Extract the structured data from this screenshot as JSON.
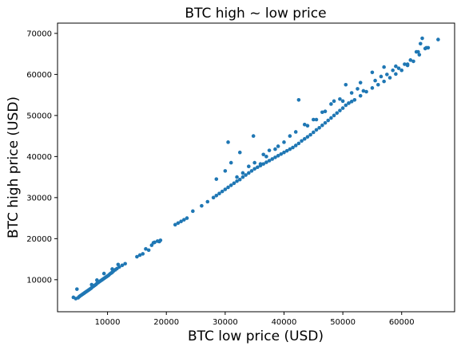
{
  "chart_data": {
    "type": "scatter",
    "title": "BTC high ~ low price",
    "xlabel": "BTC low price (USD)",
    "ylabel": "BTC high price (USD)",
    "xlim": [
      1500,
      69000
    ],
    "ylim": [
      2200,
      72500
    ],
    "xticks": [
      10000,
      20000,
      30000,
      40000,
      50000,
      60000
    ],
    "xtick_labels": [
      "10000",
      "20000",
      "30000",
      "40000",
      "50000",
      "60000"
    ],
    "yticks": [
      10000,
      20000,
      30000,
      40000,
      50000,
      60000,
      70000
    ],
    "ytick_labels": [
      "10000",
      "20000",
      "30000",
      "40000",
      "50000",
      "60000",
      "70000"
    ],
    "grid": false,
    "marker_color": "#1f77b4",
    "series": [
      {
        "x": [
          4200,
          4600,
          4800,
          5000,
          5200,
          5400,
          5600,
          5800,
          6000,
          6200,
          6400,
          6600,
          6800,
          7000,
          7200,
          7400,
          7600,
          7800,
          8000,
          8200,
          8400,
          8600,
          8800,
          9000,
          9200,
          9400,
          9600,
          9800,
          10000,
          10200,
          10400,
          10600,
          10800,
          11000,
          11300,
          11600,
          12000,
          12500,
          13000,
          7300,
          8200,
          9400,
          10800,
          11800,
          15000,
          16000,
          17000,
          17500,
          18000,
          18500,
          19000,
          15500,
          16500,
          17800,
          18800,
          21500,
          22000,
          22500,
          23000,
          23500,
          24500,
          26000,
          27000,
          28000,
          28500,
          29000,
          29500,
          30000,
          30500,
          31000,
          31500,
          32000,
          32500,
          33000,
          33500,
          34000,
          34500,
          35000,
          35500,
          36000,
          36500,
          37000,
          37500,
          38000,
          38500,
          39000,
          39500,
          40000,
          40500,
          41000,
          41500,
          42000,
          42500,
          43000,
          43500,
          44000,
          44500,
          45000,
          45500,
          46000,
          46500,
          47000,
          47500,
          48000,
          48500,
          49000,
          49500,
          50000,
          50500,
          51000,
          51500,
          52000,
          53000,
          54000,
          55000,
          56000,
          57000,
          58000,
          59000,
          60000,
          61000,
          62000,
          63000,
          64000,
          30500,
          31000,
          32500,
          34800,
          37000,
          36000,
          38500,
          40000,
          42000,
          43500,
          45000,
          46500,
          48000,
          49500,
          51000,
          52500,
          47000,
          44000,
          41000,
          39000,
          36500,
          34000,
          32000,
          28500,
          30000,
          33000,
          35000,
          37500,
          42500,
          45500,
          48500,
          50500,
          53500,
          55500,
          56500,
          57500,
          58500,
          59500,
          60500,
          61500,
          62500,
          63500,
          64500,
          66200,
          62800,
          63200,
          64200,
          61000,
          59000,
          57000,
          55000,
          53000,
          51500,
          50000
        ],
        "y": [
          5700,
          5400,
          7700,
          5600,
          5900,
          6100,
          6300,
          6500,
          6700,
          6900,
          7100,
          7300,
          7500,
          7700,
          7900,
          8200,
          8400,
          8600,
          8800,
          9100,
          9300,
          9500,
          9700,
          9900,
          10100,
          10300,
          10500,
          10700,
          10900,
          11100,
          11400,
          11600,
          11800,
          12100,
          12400,
          12700,
          13100,
          13500,
          13900,
          8800,
          9900,
          11500,
          12600,
          13700,
          15600,
          16300,
          17200,
          18400,
          19100,
          19400,
          19600,
          16000,
          17500,
          19000,
          19300,
          23400,
          23800,
          24200,
          24600,
          25000,
          26700,
          28000,
          29000,
          30000,
          30500,
          31000,
          31500,
          32000,
          32500,
          33000,
          33500,
          34000,
          34400,
          35000,
          35500,
          36000,
          36500,
          37000,
          37400,
          37800,
          38200,
          38600,
          39000,
          39400,
          39800,
          40200,
          40600,
          41000,
          41400,
          41800,
          42200,
          42700,
          43200,
          43800,
          44300,
          44800,
          45300,
          45900,
          46500,
          47000,
          47600,
          48200,
          48800,
          49400,
          50000,
          50600,
          51200,
          51800,
          52500,
          53000,
          53400,
          53800,
          54800,
          55800,
          56700,
          57500,
          58300,
          59200,
          60100,
          61000,
          62200,
          63200,
          64800,
          66300,
          43500,
          38500,
          41000,
          45000,
          40000,
          38200,
          41800,
          43500,
          46000,
          47800,
          49000,
          50800,
          52800,
          54000,
          53000,
          56500,
          51000,
          47500,
          45000,
          42500,
          40500,
          37600,
          35000,
          34500,
          36500,
          36000,
          38500,
          41500,
          53800,
          49000,
          53500,
          57500,
          56000,
          58500,
          59500,
          60000,
          61000,
          61500,
          62500,
          63500,
          65500,
          68800,
          66500,
          68500,
          65500,
          67500,
          66500,
          62500,
          62000,
          61800,
          60500,
          58000,
          55500,
          53500
        ]
      }
    ]
  }
}
